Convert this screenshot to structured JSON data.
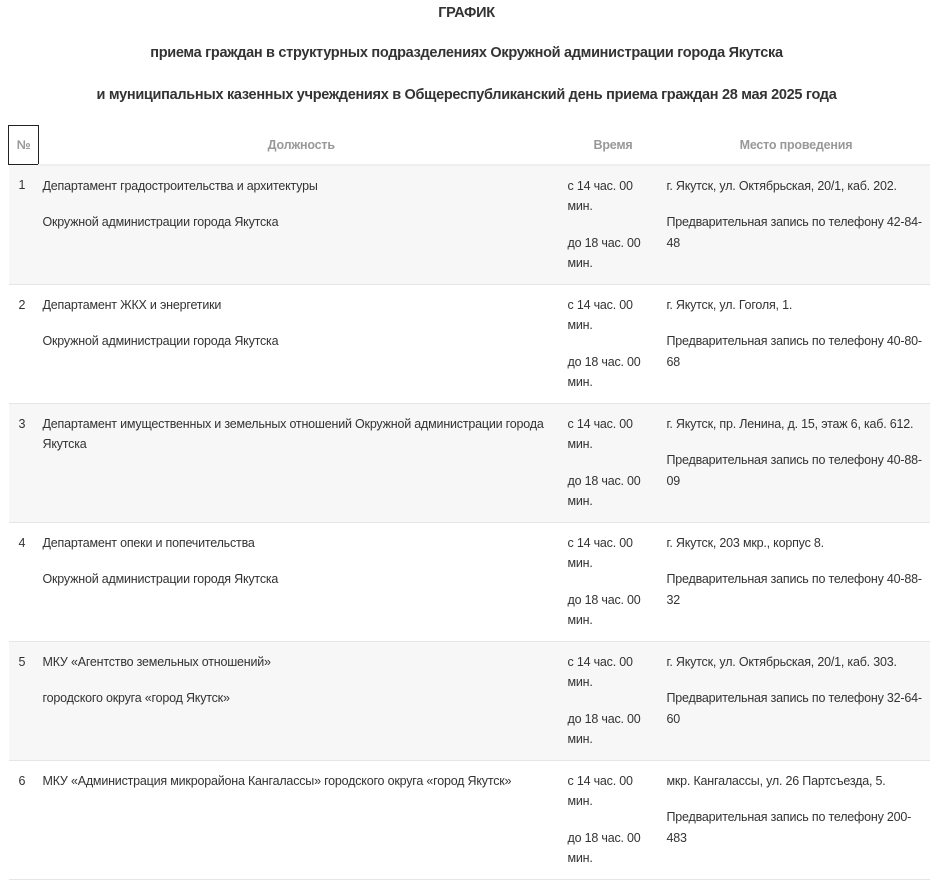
{
  "heading": {
    "title": "ГРАФИК",
    "line1": "приема граждан в структурных подразделениях Окружной администрации города Якутска",
    "line2": "и муниципальных казенных учреждениях в Общереспубликанский день приема граждан 28 мая 2025 года"
  },
  "table": {
    "headers": {
      "num": "№",
      "position": "Должность",
      "time": "Время",
      "place": "Место проведения"
    },
    "rows": [
      {
        "num": "1",
        "position": [
          "Департамент градостроительства и архитектуры",
          "Окружной администрации города Якутска"
        ],
        "time": [
          "с 14 час. 00 мин.",
          "до 18 час. 00 мин."
        ],
        "place": [
          "г. Якутск, ул. Октябрьская, 20/1, каб. 202.",
          "Предварительная запись по телефону 42-84-48"
        ]
      },
      {
        "num": "2",
        "position": [
          "Департамент ЖКХ и энергетики",
          "Окружной администрации города Якутска"
        ],
        "time": [
          "с 14 час. 00 мин.",
          "до 18 час. 00 мин."
        ],
        "place": [
          "г. Якутск, ул. Гоголя, 1.",
          "Предварительная запись по телефону 40-80-68"
        ]
      },
      {
        "num": "3",
        "position": [
          "Департамент имущественных и земельных отношений Окружной администрации города Якутска"
        ],
        "time": [
          "с 14 час. 00 мин.",
          "до 18 час. 00 мин."
        ],
        "place": [
          "г. Якутск, пр. Ленина, д. 15, этаж 6, каб. 612.",
          "Предварительная запись по телефону 40-88-09"
        ]
      },
      {
        "num": "4",
        "position": [
          "Департамент опеки и попечительства",
          "Окружной администрации городя Якутска"
        ],
        "time": [
          "с 14 час. 00 мин.",
          "до 18 час. 00 мин."
        ],
        "place": [
          "г. Якутск, 203 мкр., корпус 8.",
          "Предварительная запись по телефону 40-88-32"
        ]
      },
      {
        "num": "5",
        "position": [
          "МКУ «Агентство земельных отношений»",
          "городского округа «город Якутск»"
        ],
        "time": [
          "с 14 час. 00 мин.",
          "до 18 час. 00 мин."
        ],
        "place": [
          "г. Якутск, ул. Октябрьская, 20/1, каб. 303.",
          "Предварительная запись по телефону 32-64-60"
        ]
      },
      {
        "num": "6",
        "position": [
          "МКУ «Администрация микрорайона Кангалассы» городского округа «город Якутск»"
        ],
        "time": [
          "с 14 час. 00 мин.",
          "до 18 час. 00 мин."
        ],
        "place": [
          "мкр. Кангалассы, ул. 26 Партсъезда, 5.",
          "Предварительная запись по телефону 200-483"
        ]
      }
    ]
  }
}
